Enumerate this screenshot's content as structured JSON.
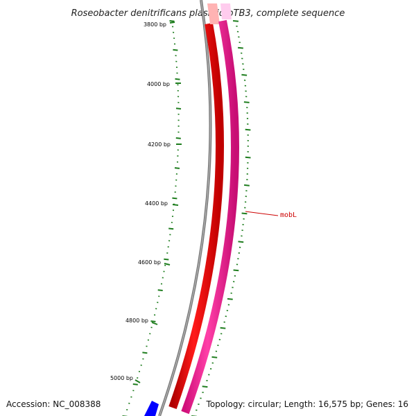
{
  "title": "Roseobacter denitrificans plasmid pTB3, complete sequence",
  "accession_text": "Accession: NC_008388",
  "topology_text": "Topology: circular; Length: 16,575 bp; Genes: 16",
  "tick_labels": [
    "3800 bp",
    "4000 bp",
    "4200 bp",
    "4400 bp",
    "4600 bp",
    "4800 bp",
    "5000 bp"
  ],
  "gene_label": "mobL",
  "colors": {
    "backbone": "#7a7a7a",
    "tick": "#1e7d1e",
    "gene_forward": "#ff0000",
    "gene_reverse": "#ff1493",
    "gene_other": "#0000ff",
    "label_line": "#cc0000"
  }
}
